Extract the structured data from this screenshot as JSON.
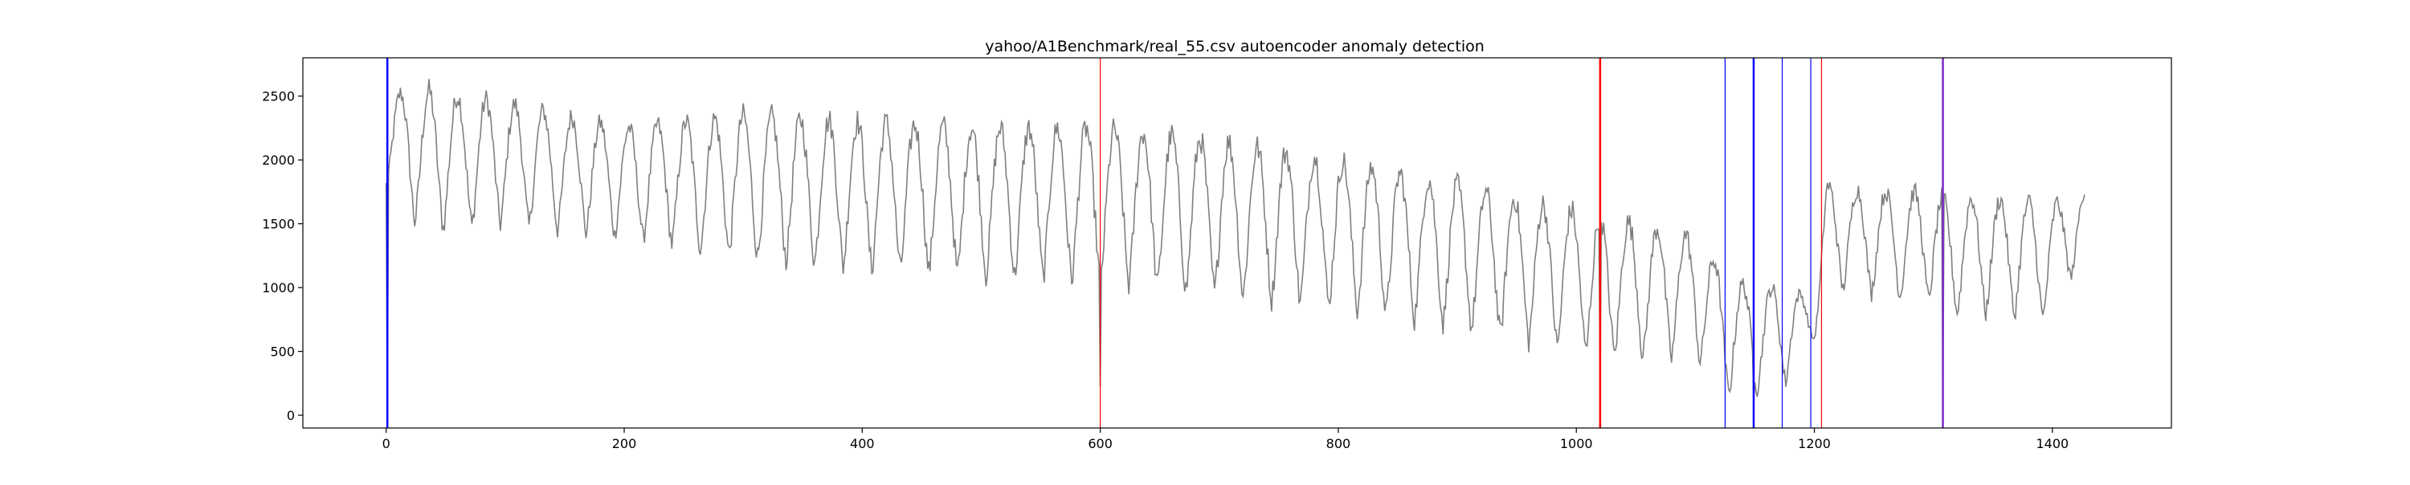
{
  "chart_data": {
    "type": "line",
    "title": "yahoo/A1Benchmark/real_55.csv autoencoder anomaly detection",
    "xlabel": "",
    "ylabel": "",
    "xlim": [
      -70,
      1500
    ],
    "ylim": [
      -100,
      2800
    ],
    "grid": false,
    "legend": "none",
    "x_ticks": [
      0,
      200,
      400,
      600,
      800,
      1000,
      1200,
      1400
    ],
    "y_ticks": [
      0,
      500,
      1000,
      1500,
      2000,
      2500
    ],
    "series": [
      {
        "color": "#808080",
        "n_points": 1428,
        "cycle_period": 24,
        "envelope": {
          "x": [
            0,
            30,
            100,
            200,
            300,
            400,
            500,
            600,
            700,
            800,
            900,
            1000,
            1050,
            1100,
            1130,
            1150,
            1175,
            1200,
            1210,
            1250,
            1300,
            1310,
            1350,
            1400,
            1427
          ],
          "high": [
            2500,
            2550,
            2450,
            2250,
            2350,
            2300,
            2250,
            2250,
            2150,
            2000,
            1800,
            1600,
            1500,
            1400,
            1050,
            1000,
            1000,
            900,
            1800,
            1750,
            1750,
            1700,
            1700,
            1650,
            1750
          ],
          "low": [
            1800,
            1450,
            1500,
            1400,
            1250,
            1150,
            1100,
            1050,
            950,
            850,
            700,
            500,
            450,
            450,
            150,
            200,
            250,
            600,
            1000,
            950,
            900,
            800,
            800,
            750,
            1300
          ]
        },
        "spikes": [
          {
            "x": 1,
            "y": 0
          },
          {
            "x": 600,
            "y": 220
          },
          {
            "x": 1020,
            "y": 200
          },
          {
            "x": 1149,
            "y": 130
          },
          {
            "x": 1308,
            "y": 40
          }
        ]
      }
    ],
    "markers": [
      {
        "x": 1,
        "color": "#0000ff",
        "width": 2.5
      },
      {
        "x": 600,
        "color": "#ff0000",
        "width": 1.2
      },
      {
        "x": 1020,
        "color": "#ff0000",
        "width": 2.5
      },
      {
        "x": 1125,
        "color": "#0000ff",
        "width": 1.2
      },
      {
        "x": 1149,
        "color": "#0000ff",
        "width": 2.5
      },
      {
        "x": 1173,
        "color": "#0000ff",
        "width": 1.2
      },
      {
        "x": 1197,
        "color": "#0000ff",
        "width": 1.2
      },
      {
        "x": 1206,
        "color": "#ff0000",
        "width": 1.2
      },
      {
        "x": 1308,
        "color": "#7a2ac8",
        "width": 2.5
      }
    ]
  }
}
